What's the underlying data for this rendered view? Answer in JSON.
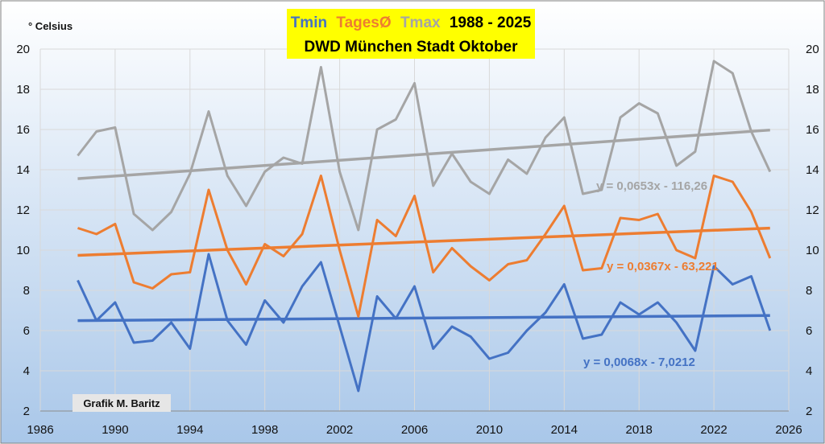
{
  "chart_data": {
    "type": "line",
    "title_parts": [
      {
        "text": "Tmin",
        "color": "#4472C4"
      },
      {
        "text": "TagesØ",
        "color": "#ED7D31"
      },
      {
        "text": "Tmax",
        "color": "#A5A5A5"
      },
      {
        "text": "1988 - 2025",
        "color": "#000000"
      }
    ],
    "subtitle": "DWD München Stadt Oktober",
    "ylabel": "° Celsius",
    "credit": "Grafik M. Baritz",
    "xlim": [
      1986,
      2026
    ],
    "ylim": [
      2,
      20
    ],
    "x_ticks": [
      1986,
      1990,
      1994,
      1998,
      2002,
      2006,
      2010,
      2014,
      2018,
      2022,
      2026
    ],
    "y_ticks": [
      2,
      4,
      6,
      8,
      10,
      12,
      14,
      16,
      18,
      20
    ],
    "grid": true,
    "x": [
      1988,
      1989,
      1990,
      1991,
      1992,
      1993,
      1994,
      1995,
      1996,
      1997,
      1998,
      1999,
      2000,
      2001,
      2002,
      2003,
      2004,
      2005,
      2006,
      2007,
      2008,
      2009,
      2010,
      2011,
      2012,
      2013,
      2014,
      2015,
      2016,
      2017,
      2018,
      2019,
      2020,
      2021,
      2022,
      2023,
      2024,
      2025
    ],
    "series": [
      {
        "name": "Tmax",
        "color": "#A5A5A5",
        "values": [
          14.7,
          15.9,
          16.1,
          11.8,
          11.0,
          11.9,
          13.8,
          16.9,
          13.7,
          12.2,
          13.9,
          14.6,
          14.3,
          19.1,
          13.9,
          11.0,
          16.0,
          16.5,
          18.3,
          13.2,
          14.8,
          13.4,
          12.8,
          14.5,
          13.8,
          15.6,
          16.6,
          12.8,
          13.0,
          16.6,
          17.3,
          16.8,
          14.2,
          14.9,
          19.4,
          18.8,
          15.9,
          13.9
        ],
        "trend": {
          "slope": 0.0653,
          "intercept": -116.26,
          "label": "y = 0,0653x - 116,26"
        }
      },
      {
        "name": "TagesØ",
        "color": "#ED7D31",
        "values": [
          11.1,
          10.8,
          11.3,
          8.4,
          8.1,
          8.8,
          8.9,
          13.0,
          10.0,
          8.3,
          10.3,
          9.7,
          10.8,
          13.7,
          10.0,
          6.7,
          11.5,
          10.7,
          12.7,
          8.9,
          10.1,
          9.2,
          8.5,
          9.3,
          9.5,
          10.8,
          12.2,
          9.0,
          9.1,
          11.6,
          11.5,
          11.8,
          10.0,
          9.6,
          13.7,
          13.4,
          11.9,
          9.6
        ],
        "trend": {
          "slope": 0.0367,
          "intercept": -63.221,
          "label": "y = 0,0367x - 63,221"
        }
      },
      {
        "name": "Tmin",
        "color": "#4472C4",
        "values": [
          8.5,
          6.5,
          7.4,
          5.4,
          5.5,
          6.4,
          5.1,
          9.8,
          6.5,
          5.3,
          7.5,
          6.4,
          8.2,
          9.4,
          6.2,
          3.0,
          7.7,
          6.6,
          8.2,
          5.1,
          6.2,
          5.7,
          4.6,
          4.9,
          6.0,
          6.9,
          8.3,
          5.6,
          5.8,
          7.4,
          6.8,
          7.4,
          6.4,
          5.0,
          9.2,
          8.3,
          8.7,
          6.0
        ],
        "trend": {
          "slope": 0.0068,
          "intercept": -7.0212,
          "label": "y = 0,0068x - 7,0212"
        }
      }
    ]
  }
}
